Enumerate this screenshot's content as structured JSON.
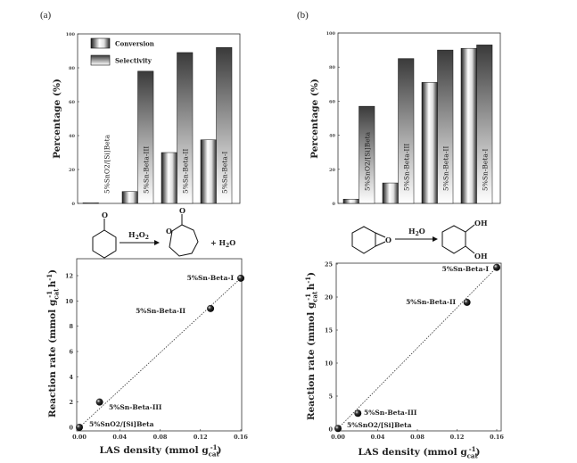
{
  "panels": {
    "a": "(a)",
    "b": "(b)"
  },
  "scheme_a": {
    "reagent_H": "H",
    "reagent_2a": "2",
    "reagent_O": "O",
    "reagent_2b": "2",
    "ketone_O": "O",
    "lactone_O": "O",
    "ring_O": "O",
    "plus": "+ H",
    "water_2": "2",
    "water_O": "O"
  },
  "scheme_b": {
    "reagent_H": "H",
    "reagent_2": "2",
    "reagent_O": "O",
    "epoxide_O": "O",
    "oh1": "OH",
    "oh2": "OH"
  },
  "axis_titles": {
    "percentage": "Percentage (%)",
    "rate_main": "Reaction rate (mmol g",
    "rate_sub": "cat",
    "rate_sup": "-1",
    "rate_h": " h",
    "rate_hsup": "-1",
    "rate_close": ")",
    "las_main": "LAS density (mmol g",
    "las_sub": "cat",
    "las_sup": "-1",
    "las_close": ")"
  },
  "chart_data": [
    {
      "id": "a-bar",
      "type": "bar",
      "title": "",
      "categories": [
        "5%SnO2/[Si]Beta",
        "5%Sn-Beta-III",
        "5%Sn-Beta-II",
        "5%Sn-Beta-I"
      ],
      "series": [
        {
          "name": "Conversion",
          "values": [
            0.3,
            7,
            30,
            37.5
          ]
        },
        {
          "name": "Selectivity",
          "values": [
            0,
            78,
            89,
            92
          ]
        }
      ],
      "ylabel": "Percentage (%)",
      "ylim": [
        0,
        100
      ],
      "yticks": [
        "0",
        "20",
        "40",
        "60",
        "80",
        "100"
      ],
      "legend": "top-left"
    },
    {
      "id": "b-bar",
      "type": "bar",
      "title": "",
      "categories": [
        "5%SnO2/[Si]Beta",
        "5%Sn-Beta-III",
        "5%Sn-Beta-II",
        "5%Sn-Beta-I"
      ],
      "series": [
        {
          "name": "Conversion",
          "values": [
            2.5,
            12,
            71,
            91
          ]
        },
        {
          "name": "Selectivity",
          "values": [
            57,
            85,
            90,
            93
          ]
        }
      ],
      "ylabel": "Percentage (%)",
      "ylim": [
        0,
        100
      ],
      "yticks": [
        "0",
        "20",
        "40",
        "60",
        "80",
        "100"
      ]
    },
    {
      "id": "a-scatter",
      "type": "scatter",
      "labels": [
        "5%SnO2/[Si]Beta",
        "5%Sn-Beta-III",
        "5%Sn-Beta-II",
        "5%Sn-Beta-I"
      ],
      "x": [
        0.0,
        0.02,
        0.13,
        0.16
      ],
      "y": [
        0.0,
        2.0,
        9.4,
        11.8
      ],
      "xlabel": "LAS density (mmol g_cat^-1)",
      "ylabel": "Reaction rate (mmol g_cat^-1 h^-1)",
      "xlim": [
        0,
        0.16
      ],
      "ylim": [
        0,
        13
      ],
      "xticks": [
        "0.00",
        "0.04",
        "0.08",
        "0.12",
        "0.16"
      ],
      "yticks": [
        "0",
        "2",
        "4",
        "6",
        "8",
        "10",
        "12"
      ],
      "trendline": "dotted linear fit"
    },
    {
      "id": "b-scatter",
      "type": "scatter",
      "labels": [
        "5%SnO2/[Si]Beta",
        "5%Sn-Beta-III",
        "5%Sn-Beta-II",
        "5%Sn-Beta-I"
      ],
      "x": [
        0.0,
        0.02,
        0.13,
        0.16
      ],
      "y": [
        0.1,
        2.4,
        19.2,
        24.5
      ],
      "xlabel": "LAS density (mmol g_cat^-1)",
      "ylabel": "Reaction rate (mmol g_cat^-1 h^-1)",
      "xlim": [
        0,
        0.16
      ],
      "ylim": [
        0,
        25
      ],
      "xticks": [
        "0.00",
        "0.04",
        "0.08",
        "0.12",
        "0.16"
      ],
      "yticks": [
        "0",
        "5",
        "10",
        "15",
        "20",
        "25"
      ],
      "trendline": "dotted linear fit"
    }
  ]
}
